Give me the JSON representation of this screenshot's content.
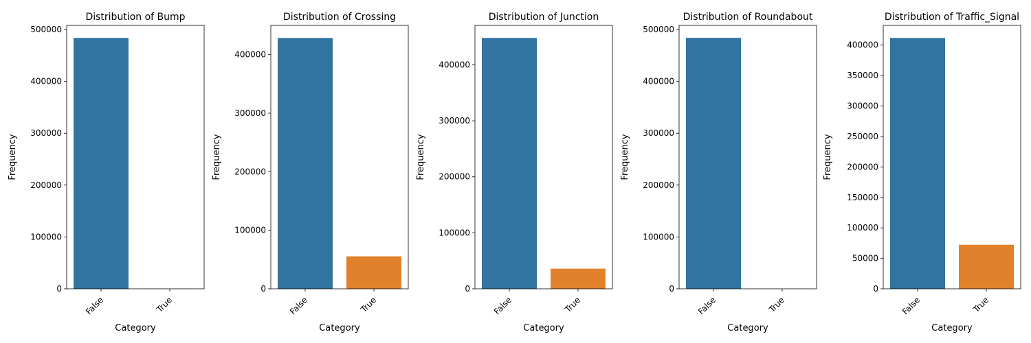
{
  "chart_data": [
    {
      "type": "bar",
      "title": "Distribution of Bump",
      "xlabel": "Category",
      "ylabel": "Frequency",
      "categories": [
        "False",
        "True"
      ],
      "values": [
        483800,
        200
      ],
      "ylim": [
        0,
        508000
      ],
      "yticks": [
        0,
        100000,
        200000,
        300000,
        400000,
        500000
      ],
      "colors": [
        "#3274a1",
        "#e1812c"
      ]
    },
    {
      "type": "bar",
      "title": "Distribution of Crossing",
      "xlabel": "Category",
      "ylabel": "Frequency",
      "categories": [
        "False",
        "True"
      ],
      "values": [
        428500,
        55500
      ],
      "ylim": [
        0,
        450000
      ],
      "yticks": [
        0,
        100000,
        200000,
        300000,
        400000
      ],
      "colors": [
        "#3274a1",
        "#e1812c"
      ]
    },
    {
      "type": "bar",
      "title": "Distribution of Junction",
      "xlabel": "Category",
      "ylabel": "Frequency",
      "categories": [
        "False",
        "True"
      ],
      "values": [
        448000,
        36000
      ],
      "ylim": [
        0,
        470400
      ],
      "yticks": [
        0,
        100000,
        200000,
        300000,
        400000
      ],
      "colors": [
        "#3274a1",
        "#e1812c"
      ]
    },
    {
      "type": "bar",
      "title": "Distribution of Roundabout",
      "xlabel": "Category",
      "ylabel": "Frequency",
      "categories": [
        "False",
        "True"
      ],
      "values": [
        484000,
        30
      ],
      "ylim": [
        0,
        508000
      ],
      "yticks": [
        0,
        100000,
        200000,
        300000,
        400000,
        500000
      ],
      "colors": [
        "#3274a1",
        "#e1812c"
      ]
    },
    {
      "type": "bar",
      "title": "Distribution of Traffic_Signal",
      "xlabel": "Category",
      "ylabel": "Frequency",
      "categories": [
        "False",
        "True"
      ],
      "values": [
        411700,
        72300
      ],
      "ylim": [
        0,
        432300
      ],
      "yticks": [
        0,
        50000,
        100000,
        150000,
        200000,
        250000,
        300000,
        350000,
        400000
      ],
      "colors": [
        "#3274a1",
        "#e1812c"
      ]
    }
  ]
}
